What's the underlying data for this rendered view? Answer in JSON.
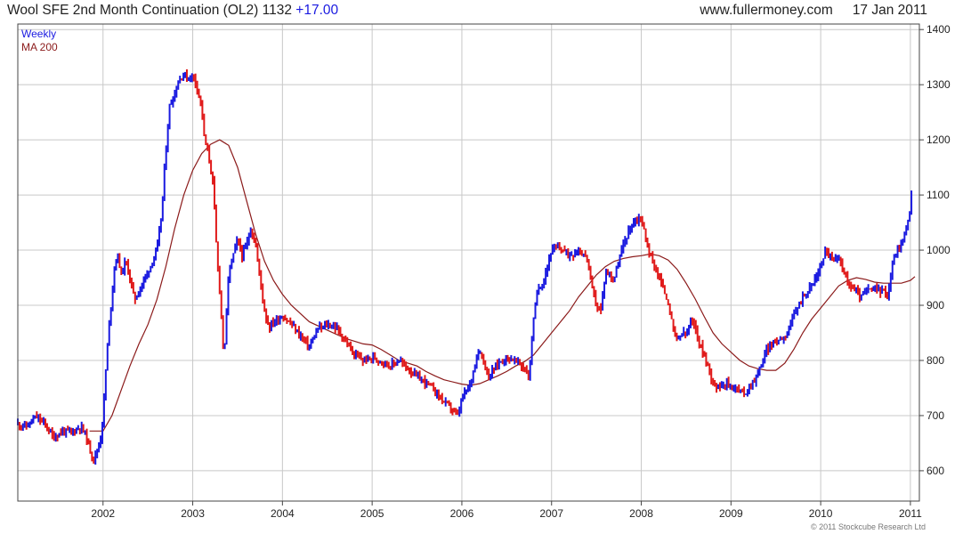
{
  "header": {
    "title": "Wool SFE 2nd Month Continuation (OL2)",
    "last": "1132",
    "change": "+17.00",
    "site": "www.fullermoney.com",
    "date": "17 Jan 2011"
  },
  "footer": {
    "copyright": "© 2011 Stockcube Research Ltd"
  },
  "colors": {
    "up": "#1a1ae0",
    "down": "#e01a1a",
    "ma": "#8b1a1a",
    "grid": "#c8c8c8",
    "frame": "#444444"
  },
  "chart_data": {
    "type": "line",
    "legend": [
      "Weekly",
      "MA 200"
    ],
    "legend_placement": "top-left",
    "grid": true,
    "x_ticks": [
      "2002",
      "2003",
      "2004",
      "2005",
      "2006",
      "2007",
      "2008",
      "2009",
      "2010",
      "2011"
    ],
    "y_ticks": [
      600,
      700,
      800,
      900,
      1000,
      1100,
      1200,
      1300,
      1400
    ],
    "xlim": [
      2001.05,
      2011.1
    ],
    "ylim": [
      545,
      1410
    ],
    "series": [
      {
        "name": "Weekly",
        "points": [
          [
            2001.05,
            685
          ],
          [
            2001.15,
            680
          ],
          [
            2001.25,
            698
          ],
          [
            2001.35,
            685
          ],
          [
            2001.45,
            660
          ],
          [
            2001.55,
            672
          ],
          [
            2001.65,
            670
          ],
          [
            2001.75,
            680
          ],
          [
            2001.8,
            668
          ],
          [
            2001.85,
            640
          ],
          [
            2001.9,
            620
          ],
          [
            2001.97,
            655
          ],
          [
            2002.0,
            700
          ],
          [
            2002.03,
            780
          ],
          [
            2002.06,
            850
          ],
          [
            2002.1,
            920
          ],
          [
            2002.13,
            975
          ],
          [
            2002.17,
            990
          ],
          [
            2002.2,
            955
          ],
          [
            2002.25,
            980
          ],
          [
            2002.3,
            950
          ],
          [
            2002.35,
            910
          ],
          [
            2002.4,
            925
          ],
          [
            2002.45,
            945
          ],
          [
            2002.5,
            960
          ],
          [
            2002.55,
            980
          ],
          [
            2002.6,
            1000
          ],
          [
            2002.65,
            1060
          ],
          [
            2002.7,
            1180
          ],
          [
            2002.74,
            1260
          ],
          [
            2002.8,
            1285
          ],
          [
            2002.85,
            1310
          ],
          [
            2002.9,
            1320
          ],
          [
            2002.95,
            1310
          ],
          [
            2003.0,
            1318
          ],
          [
            2003.05,
            1295
          ],
          [
            2003.1,
            1260
          ],
          [
            2003.13,
            1200
          ],
          [
            2003.18,
            1170
          ],
          [
            2003.23,
            1115
          ],
          [
            2003.27,
            985
          ],
          [
            2003.3,
            930
          ],
          [
            2003.35,
            800
          ],
          [
            2003.4,
            960
          ],
          [
            2003.5,
            1020
          ],
          [
            2003.55,
            990
          ],
          [
            2003.6,
            1010
          ],
          [
            2003.65,
            1040
          ],
          [
            2003.7,
            1010
          ],
          [
            2003.75,
            950
          ],
          [
            2003.8,
            890
          ],
          [
            2003.85,
            860
          ],
          [
            2003.9,
            870
          ],
          [
            2004.0,
            880
          ],
          [
            2004.1,
            865
          ],
          [
            2004.2,
            845
          ],
          [
            2004.3,
            825
          ],
          [
            2004.4,
            858
          ],
          [
            2004.45,
            860
          ],
          [
            2004.5,
            865
          ],
          [
            2004.6,
            860
          ],
          [
            2004.7,
            835
          ],
          [
            2004.8,
            810
          ],
          [
            2004.9,
            800
          ],
          [
            2005.0,
            805
          ],
          [
            2005.1,
            800
          ],
          [
            2005.2,
            790
          ],
          [
            2005.3,
            800
          ],
          [
            2005.4,
            785
          ],
          [
            2005.5,
            770
          ],
          [
            2005.6,
            760
          ],
          [
            2005.7,
            745
          ],
          [
            2005.8,
            725
          ],
          [
            2005.9,
            710
          ],
          [
            2005.95,
            698
          ],
          [
            2006.0,
            730
          ],
          [
            2006.1,
            760
          ],
          [
            2006.15,
            800
          ],
          [
            2006.2,
            820
          ],
          [
            2006.25,
            795
          ],
          [
            2006.3,
            770
          ],
          [
            2006.4,
            795
          ],
          [
            2006.5,
            805
          ],
          [
            2006.6,
            800
          ],
          [
            2006.7,
            785
          ],
          [
            2006.75,
            770
          ],
          [
            2006.8,
            880
          ],
          [
            2006.85,
            930
          ],
          [
            2006.9,
            940
          ],
          [
            2006.95,
            970
          ],
          [
            2007.0,
            1000
          ],
          [
            2007.1,
            1005
          ],
          [
            2007.2,
            990
          ],
          [
            2007.3,
            1000
          ],
          [
            2007.4,
            985
          ],
          [
            2007.45,
            930
          ],
          [
            2007.5,
            900
          ],
          [
            2007.55,
            890
          ],
          [
            2007.6,
            960
          ],
          [
            2007.7,
            950
          ],
          [
            2007.8,
            1010
          ],
          [
            2007.85,
            1030
          ],
          [
            2007.9,
            1050
          ],
          [
            2008.0,
            1060
          ],
          [
            2008.05,
            1020
          ],
          [
            2008.1,
            990
          ],
          [
            2008.15,
            970
          ],
          [
            2008.2,
            950
          ],
          [
            2008.3,
            905
          ],
          [
            2008.35,
            860
          ],
          [
            2008.4,
            835
          ],
          [
            2008.45,
            850
          ],
          [
            2008.5,
            845
          ],
          [
            2008.55,
            870
          ],
          [
            2008.6,
            860
          ],
          [
            2008.65,
            830
          ],
          [
            2008.7,
            810
          ],
          [
            2008.78,
            770
          ],
          [
            2008.85,
            750
          ],
          [
            2008.9,
            760
          ],
          [
            2009.0,
            755
          ],
          [
            2009.1,
            745
          ],
          [
            2009.15,
            740
          ],
          [
            2009.2,
            750
          ],
          [
            2009.3,
            775
          ],
          [
            2009.35,
            800
          ],
          [
            2009.4,
            820
          ],
          [
            2009.5,
            835
          ],
          [
            2009.6,
            845
          ],
          [
            2009.7,
            880
          ],
          [
            2009.75,
            900
          ],
          [
            2009.8,
            915
          ],
          [
            2009.9,
            935
          ],
          [
            2010.0,
            970
          ],
          [
            2010.05,
            1000
          ],
          [
            2010.1,
            990
          ],
          [
            2010.15,
            980
          ],
          [
            2010.2,
            985
          ],
          [
            2010.25,
            970
          ],
          [
            2010.3,
            940
          ],
          [
            2010.4,
            925
          ],
          [
            2010.45,
            915
          ],
          [
            2010.5,
            925
          ],
          [
            2010.6,
            930
          ],
          [
            2010.7,
            925
          ],
          [
            2010.75,
            920
          ],
          [
            2010.8,
            975
          ],
          [
            2010.85,
            1000
          ],
          [
            2010.9,
            1010
          ],
          [
            2010.95,
            1040
          ],
          [
            2011.0,
            1070
          ],
          [
            2011.02,
            1130
          ]
        ]
      },
      {
        "name": "MA 200",
        "points": [
          [
            2001.85,
            672
          ],
          [
            2002.0,
            672
          ],
          [
            2002.1,
            700
          ],
          [
            2002.2,
            745
          ],
          [
            2002.3,
            790
          ],
          [
            2002.4,
            830
          ],
          [
            2002.5,
            865
          ],
          [
            2002.6,
            910
          ],
          [
            2002.7,
            970
          ],
          [
            2002.8,
            1040
          ],
          [
            2002.9,
            1100
          ],
          [
            2003.0,
            1145
          ],
          [
            2003.1,
            1175
          ],
          [
            2003.2,
            1192
          ],
          [
            2003.3,
            1200
          ],
          [
            2003.4,
            1190
          ],
          [
            2003.5,
            1150
          ],
          [
            2003.6,
            1090
          ],
          [
            2003.7,
            1030
          ],
          [
            2003.8,
            980
          ],
          [
            2003.9,
            945
          ],
          [
            2004.0,
            920
          ],
          [
            2004.1,
            900
          ],
          [
            2004.2,
            885
          ],
          [
            2004.3,
            870
          ],
          [
            2004.5,
            855
          ],
          [
            2004.7,
            840
          ],
          [
            2004.9,
            830
          ],
          [
            2005.0,
            828
          ],
          [
            2005.1,
            820
          ],
          [
            2005.2,
            810
          ],
          [
            2005.3,
            800
          ],
          [
            2005.5,
            790
          ],
          [
            2005.6,
            780
          ],
          [
            2005.7,
            772
          ],
          [
            2005.8,
            765
          ],
          [
            2006.0,
            757
          ],
          [
            2006.1,
            755
          ],
          [
            2006.2,
            758
          ],
          [
            2006.3,
            765
          ],
          [
            2006.4,
            772
          ],
          [
            2006.5,
            780
          ],
          [
            2006.6,
            790
          ],
          [
            2006.7,
            798
          ],
          [
            2006.8,
            810
          ],
          [
            2006.9,
            830
          ],
          [
            2007.0,
            850
          ],
          [
            2007.1,
            870
          ],
          [
            2007.2,
            890
          ],
          [
            2007.3,
            915
          ],
          [
            2007.4,
            935
          ],
          [
            2007.5,
            955
          ],
          [
            2007.6,
            970
          ],
          [
            2007.7,
            980
          ],
          [
            2007.8,
            985
          ],
          [
            2007.9,
            988
          ],
          [
            2008.0,
            990
          ],
          [
            2008.1,
            993
          ],
          [
            2008.2,
            990
          ],
          [
            2008.3,
            982
          ],
          [
            2008.4,
            965
          ],
          [
            2008.5,
            940
          ],
          [
            2008.6,
            912
          ],
          [
            2008.7,
            880
          ],
          [
            2008.8,
            850
          ],
          [
            2008.9,
            830
          ],
          [
            2009.0,
            815
          ],
          [
            2009.1,
            800
          ],
          [
            2009.2,
            790
          ],
          [
            2009.3,
            785
          ],
          [
            2009.4,
            782
          ],
          [
            2009.5,
            782
          ],
          [
            2009.6,
            795
          ],
          [
            2009.7,
            820
          ],
          [
            2009.8,
            850
          ],
          [
            2009.9,
            875
          ],
          [
            2010.0,
            895
          ],
          [
            2010.1,
            915
          ],
          [
            2010.2,
            935
          ],
          [
            2010.3,
            945
          ],
          [
            2010.4,
            950
          ],
          [
            2010.5,
            947
          ],
          [
            2010.6,
            942
          ],
          [
            2010.7,
            940
          ],
          [
            2010.8,
            940
          ],
          [
            2010.9,
            940
          ],
          [
            2011.0,
            945
          ],
          [
            2011.05,
            952
          ]
        ]
      }
    ]
  }
}
